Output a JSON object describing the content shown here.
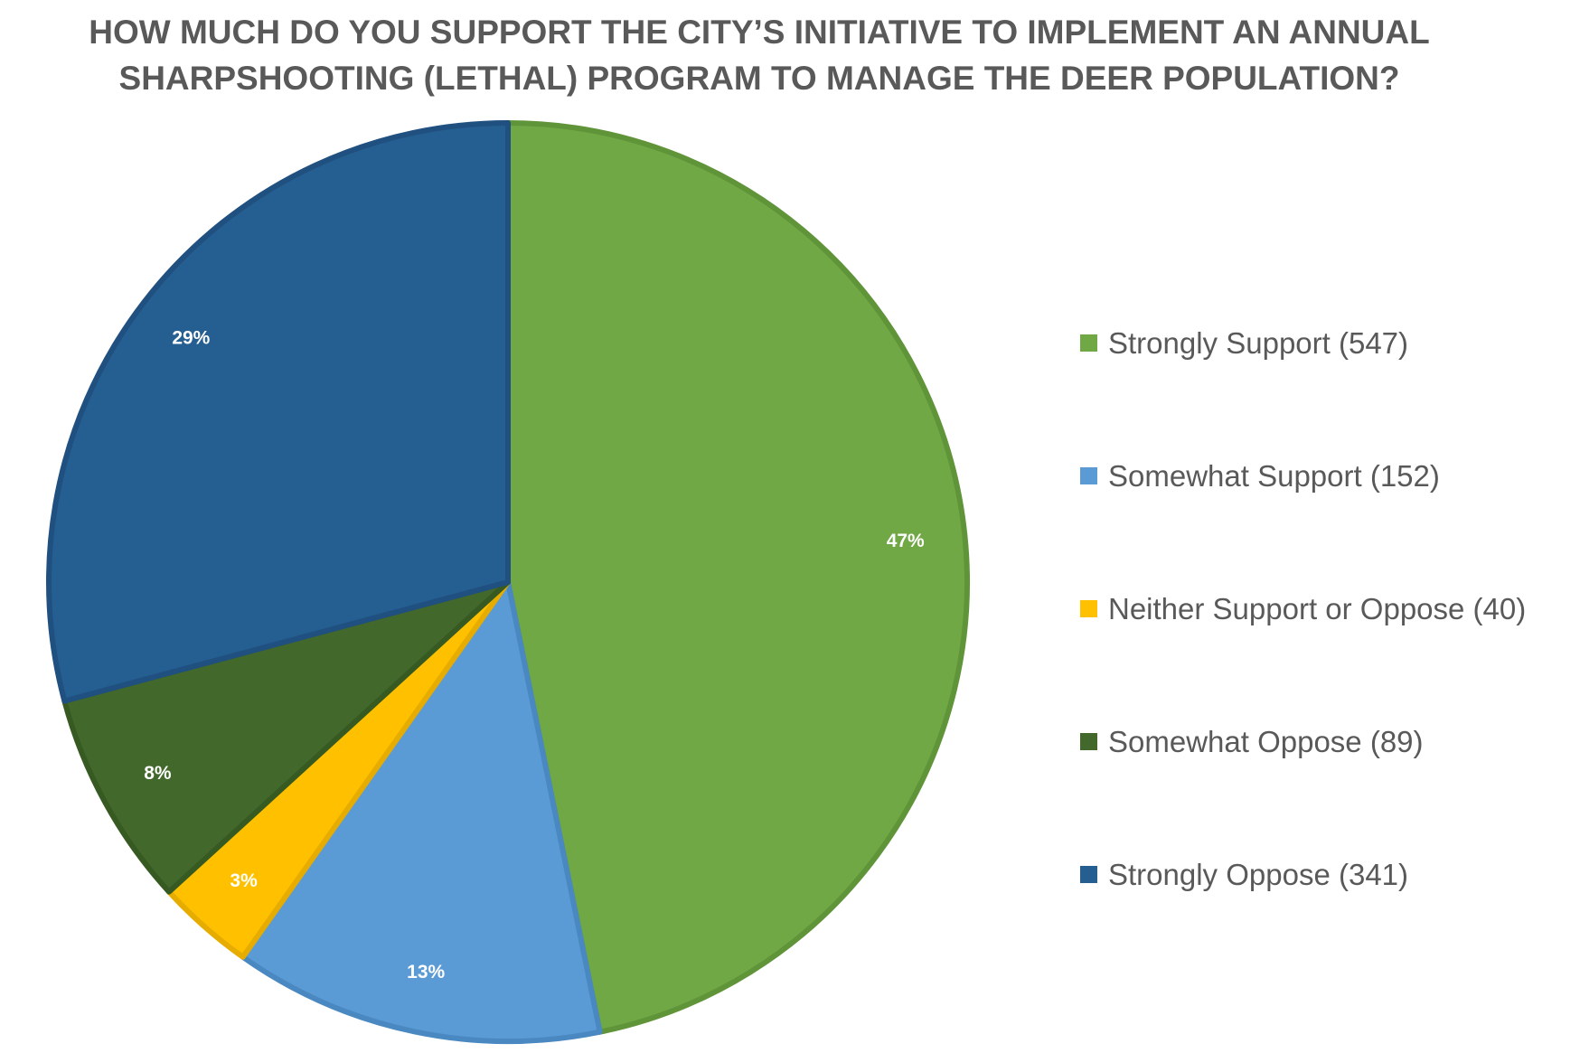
{
  "chart_data": {
    "type": "pie",
    "title_lines": [
      "HOW MUCH DO YOU SUPPORT THE CITY’S INITIATIVE TO IMPLEMENT AN ANNUAL",
      "SHARPSHOOTING (LETHAL) PROGRAM TO MANAGE THE DEER POPULATION?"
    ],
    "legend_position": "right",
    "slices": [
      {
        "label": "Strongly Support",
        "count": 547,
        "value": 547,
        "percent_label": "47%",
        "legend": "Strongly Support (547)",
        "color": "#70a845",
        "border": "#5f9439"
      },
      {
        "label": "Somewhat Support",
        "count": 152,
        "value": 152,
        "percent_label": "13%",
        "legend": "Somewhat Support (152)",
        "color": "#5b9bd5",
        "border": "#4a88c2"
      },
      {
        "label": "Neither Support or Oppose",
        "count": 40,
        "value": 40,
        "percent_label": "3%",
        "legend": "Neither Support or Oppose (40)",
        "color": "#ffc000",
        "border": "#e6ad00"
      },
      {
        "label": "Somewhat Oppose",
        "count": 89,
        "value": 89,
        "percent_label": "8%",
        "legend": "Somewhat Oppose (89)",
        "color": "#43682b",
        "border": "#375a22"
      },
      {
        "label": "Strongly Oppose",
        "count": 341,
        "value": 341,
        "percent_label": "29%",
        "legend": "Strongly Oppose (341)",
        "color": "#255e91",
        "border": "#1f5080"
      }
    ]
  }
}
